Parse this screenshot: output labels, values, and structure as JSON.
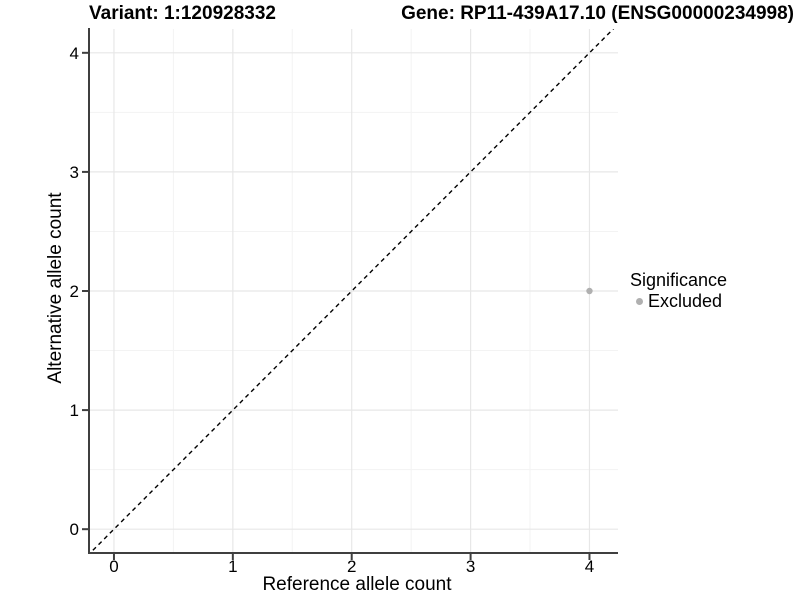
{
  "header": {
    "variant_title": "Variant: 1:120928332",
    "gene_title": "Gene: RP11-439A17.10 (ENSG00000234998)"
  },
  "legend": {
    "title": "Significance",
    "items": [
      {
        "label": "Excluded",
        "color": "#b0b0b0"
      }
    ]
  },
  "chart_data": {
    "type": "scatter",
    "title": "",
    "xlabel": "Reference allele count",
    "ylabel": "Alternative allele count",
    "xlim": [
      -0.21,
      4.24
    ],
    "ylim": [
      -0.2,
      4.2
    ],
    "x_ticks": [
      0,
      1,
      2,
      3,
      4
    ],
    "y_ticks": [
      0,
      1,
      2,
      3,
      4
    ],
    "x_minor_ticks": [
      0.5,
      1.5,
      2.5,
      3.5
    ],
    "y_minor_ticks": [
      0.5,
      1.5,
      2.5,
      3.5
    ],
    "grid": true,
    "legend_position": "right",
    "series": [
      {
        "name": "Excluded",
        "color": "#b0b0b0",
        "points": [
          {
            "x": 4,
            "y": 2
          }
        ]
      }
    ],
    "reference_line": {
      "type": "identity",
      "label": "y = x",
      "style": "dashed",
      "color": "#000000"
    },
    "colors": {
      "background": "#ffffff",
      "major_grid": "#e7e7e7",
      "minor_grid": "#f3f3f3",
      "axis": "#3f3f3f",
      "tick_label": "#000000"
    }
  }
}
